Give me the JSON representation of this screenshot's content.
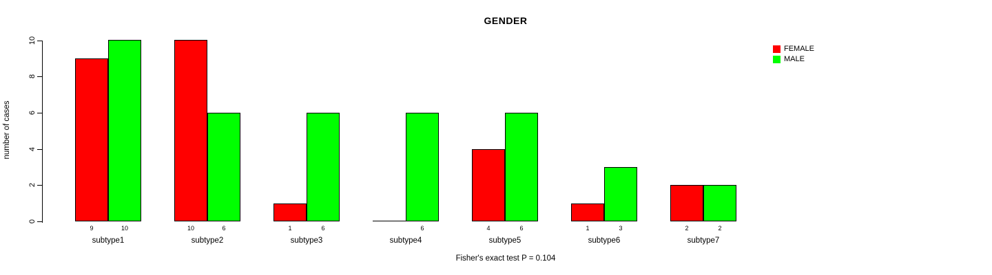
{
  "chart_data": {
    "type": "bar",
    "title": "GENDER",
    "ylabel": "number of cases",
    "xlabel": "",
    "footer": "Fisher's exact test P = 0.104",
    "categories": [
      "subtype1",
      "subtype2",
      "subtype3",
      "subtype4",
      "subtype5",
      "subtype6",
      "subtype7"
    ],
    "series": [
      {
        "name": "FEMALE",
        "color": "#ff0000",
        "values": [
          9,
          10,
          1,
          0,
          4,
          1,
          2
        ]
      },
      {
        "name": "MALE",
        "color": "#00ff00",
        "values": [
          10,
          6,
          6,
          6,
          6,
          3,
          2
        ]
      }
    ],
    "bar_value_labels": [
      [
        "9",
        "10",
        "1",
        "",
        "4",
        "1",
        "2"
      ],
      [
        "10",
        "6",
        "6",
        "6",
        "6",
        "3",
        "2"
      ]
    ],
    "ylim": [
      0,
      10
    ],
    "yticks": [
      "0",
      "2",
      "4",
      "6",
      "8",
      "10"
    ],
    "ytick_values": [
      0,
      2,
      4,
      6,
      8,
      10
    ],
    "grid": false,
    "legend_position": "right",
    "axis_color": "#000000",
    "background_color": "#ffffff"
  }
}
